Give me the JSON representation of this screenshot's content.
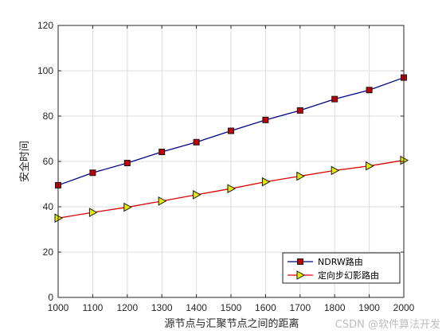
{
  "chart_data": {
    "type": "line",
    "x": [
      1000,
      1100,
      1200,
      1300,
      1400,
      1500,
      1600,
      1700,
      1800,
      1900,
      2000
    ],
    "series": [
      {
        "name": "NDRW路由",
        "values": [
          49.5,
          55,
          59.3,
          64.2,
          68.5,
          73.5,
          78.3,
          82.5,
          87.5,
          91.5,
          97
        ],
        "line_color": "#00008b",
        "marker": "square",
        "marker_color": "#c00000"
      },
      {
        "name": "定向步幻影路由",
        "values": [
          35,
          37.5,
          39.8,
          42.5,
          45.3,
          48,
          51,
          53.5,
          56,
          58,
          60.5
        ],
        "line_color": "#e00000",
        "marker": "triangle-right",
        "marker_color": "#e8e800"
      }
    ],
    "xlabel": "源节点与汇聚节点之间的距离",
    "ylabel": "安全时间",
    "xlim": [
      1000,
      2000
    ],
    "ylim": [
      0,
      120
    ],
    "xticks": [
      1000,
      1100,
      1200,
      1300,
      1400,
      1500,
      1600,
      1700,
      1800,
      1900,
      2000
    ],
    "yticks": [
      0,
      20,
      40,
      60,
      80,
      100,
      120
    ],
    "grid": true,
    "legend_position": "bottom-right"
  },
  "watermark": "CSDN @软件算法开发"
}
